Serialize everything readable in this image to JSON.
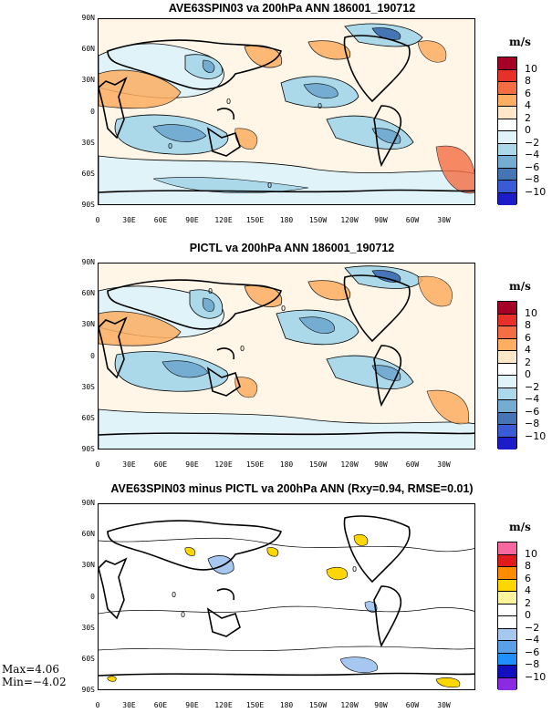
{
  "panels": [
    {
      "title": "AVE63SPIN03 va 200hPa ANN 186001_190712",
      "unit": "m/s",
      "colorbar": {
        "colors": [
          "#a50026",
          "#e8302a",
          "#f46d43",
          "#fdae61",
          "#fee8c8",
          "#ffffff",
          "#e0f3f8",
          "#abd9e9",
          "#74add1",
          "#4575b4",
          "#3b5bd6",
          "#1c1cc8"
        ],
        "labels": [
          "10",
          "8",
          "6",
          "4",
          "2",
          "0",
          "−2",
          "−4",
          "−6",
          "−8",
          "−10"
        ]
      }
    },
    {
      "title": "PICTL va 200hPa ANN 186001_190712",
      "unit": "m/s",
      "colorbar": {
        "colors": [
          "#a50026",
          "#e8302a",
          "#f46d43",
          "#fdae61",
          "#fee8c8",
          "#ffffff",
          "#e0f3f8",
          "#abd9e9",
          "#74add1",
          "#4575b4",
          "#3b5bd6",
          "#1c1cc8"
        ],
        "labels": [
          "10",
          "8",
          "6",
          "4",
          "2",
          "0",
          "−2",
          "−4",
          "−6",
          "−8",
          "−10"
        ]
      }
    },
    {
      "title": "AVE63SPIN03 minus PICTL va 200hPa ANN (Rxy=0.94, RMSE=0.01)",
      "unit": "m/s",
      "colorbar": {
        "colors": [
          "#f768a1",
          "#e31a1c",
          "#ff8c00",
          "#ffd700",
          "#fff59d",
          "#ffffff",
          "#ffffff",
          "#a6c8f0",
          "#5aa0e6",
          "#1e90ff",
          "#1010c0",
          "#8a2be2"
        ],
        "labels": [
          "10",
          "8",
          "6",
          "4",
          "2",
          "0",
          "−2",
          "−4",
          "−6",
          "−8",
          "−10"
        ]
      },
      "max_label": "Max=4.06",
      "min_label": "Min=−4.02"
    }
  ],
  "lat_labels": [
    "90N",
    "60N",
    "30N",
    "0",
    "30S",
    "60S",
    "90S"
  ],
  "lon_labels": [
    "0",
    "30E",
    "60E",
    "90E",
    "120E",
    "150E",
    "180",
    "150W",
    "120W",
    "90W",
    "60W",
    "30W"
  ],
  "contour_label": "0"
}
